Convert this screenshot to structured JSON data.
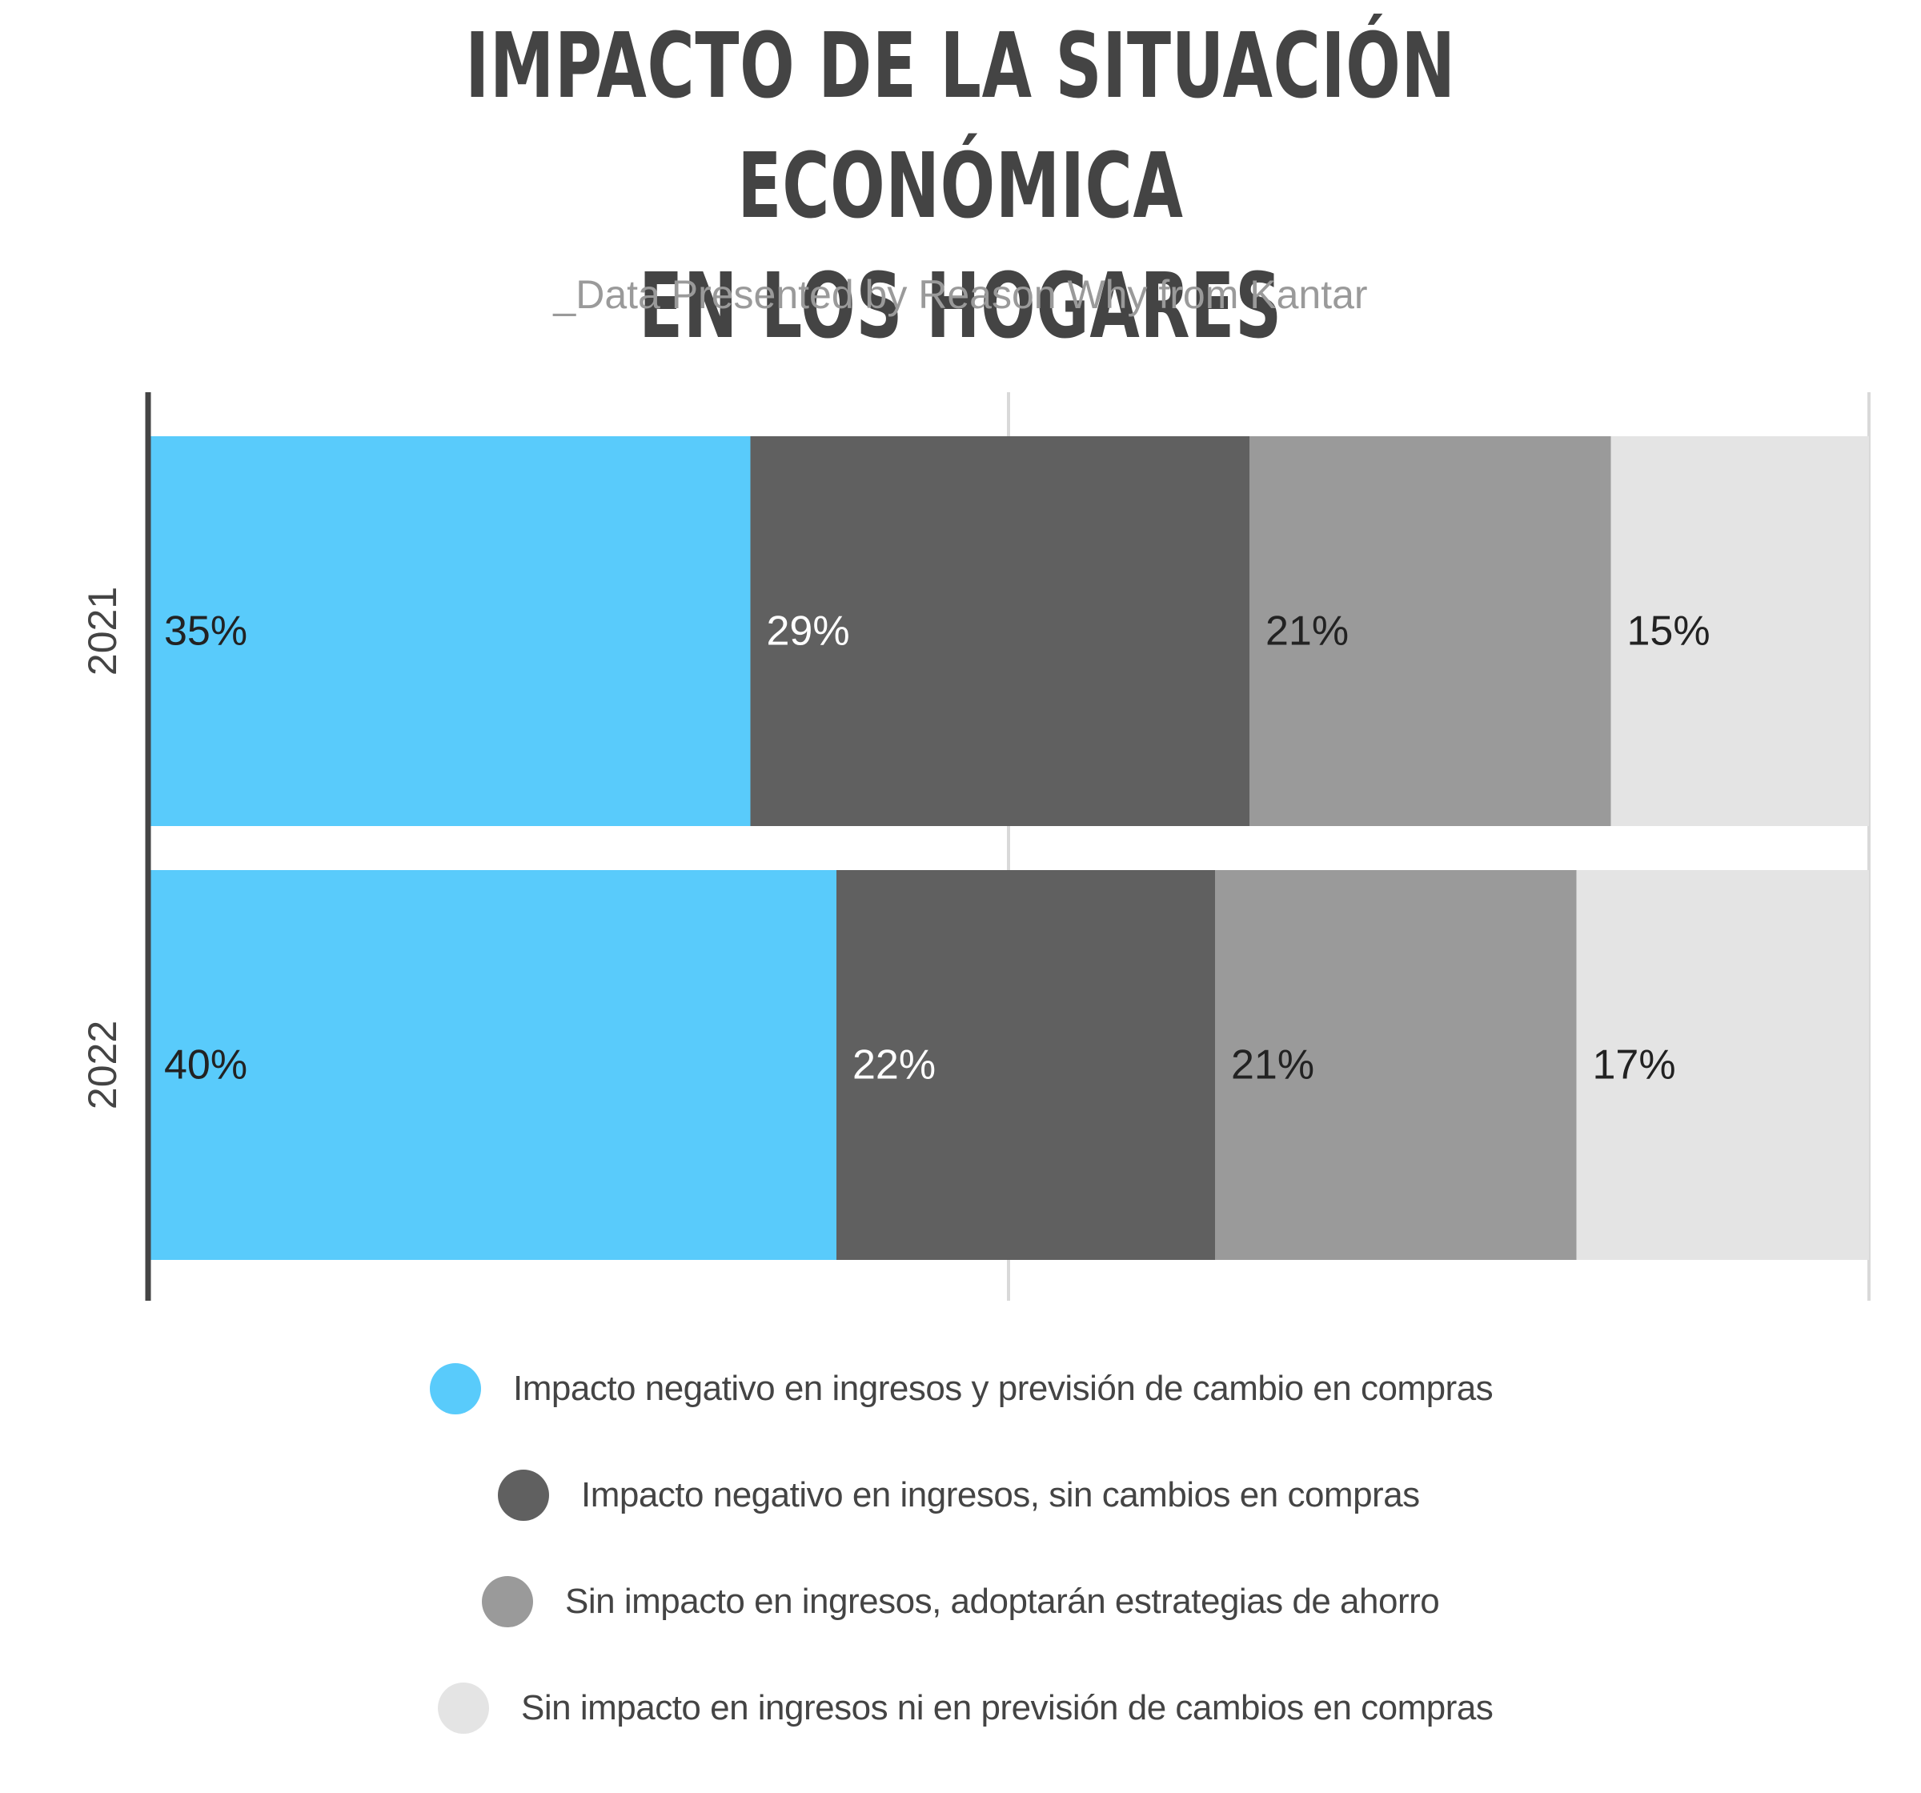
{
  "title_lines": [
    "IMPACTO DE LA SITUACIÓN ECONÓMICA",
    "EN LOS HOGARES"
  ],
  "subtitle": "_Data Presented by Reason Why from Kantar",
  "chart_data": {
    "type": "bar",
    "orientation": "horizontal",
    "stacked": true,
    "categories": [
      "2021",
      "2022"
    ],
    "xlim": [
      0,
      100
    ],
    "grid": true,
    "legend_position": "bottom",
    "series": [
      {
        "name": "Impacto negativo en ingresos y previsión de cambio en compras",
        "values": [
          35,
          40
        ],
        "labels": [
          "35%",
          "40%"
        ],
        "color": "#59CBFB",
        "label_color": "#222222"
      },
      {
        "name": "Impacto negativo en ingresos, sin cambios en compras",
        "values": [
          29,
          22
        ],
        "labels": [
          "29%",
          "22%"
        ],
        "color": "#606060",
        "label_color": "#ffffff"
      },
      {
        "name": "Sin impacto en ingresos, adoptarán estrategias de ahorro",
        "values": [
          21,
          21
        ],
        "labels": [
          "21%",
          "21%"
        ],
        "color": "#9A9A9A",
        "label_color": "#222222"
      },
      {
        "name": "Sin impacto en ingresos ni en previsión de cambios en compras",
        "values": [
          15,
          17
        ],
        "labels": [
          "15%",
          "17%"
        ],
        "color": "#E4E4E4",
        "label_color": "#222222"
      }
    ]
  }
}
